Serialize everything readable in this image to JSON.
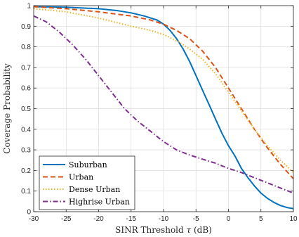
{
  "chart_data": {
    "type": "line",
    "title": "",
    "xlabel_text": "SINR Threshold ",
    "xlabel_symbol": "τ",
    "xlabel_unit": " (dB)",
    "ylabel": "Coverage Probability",
    "xlim": [
      -30,
      10
    ],
    "ylim": [
      0,
      1
    ],
    "xticks": [
      -30,
      -25,
      -20,
      -15,
      -10,
      -5,
      0,
      5,
      10
    ],
    "yticks": [
      0,
      0.1,
      0.2,
      0.3,
      0.4,
      0.5,
      0.6,
      0.7,
      0.8,
      0.9,
      1
    ],
    "grid": true,
    "legend_position": "bottom-left",
    "series": [
      {
        "name": "Suburban",
        "color": "#0072BD",
        "style": "solid",
        "x": [
          -30,
          -25,
          -20,
          -17,
          -15,
          -13,
          -11,
          -10,
          -9,
          -8,
          -7,
          -6,
          -5,
          -4,
          -3,
          -2,
          -1,
          0,
          1,
          2,
          3,
          4,
          5,
          6,
          7,
          8,
          9,
          10
        ],
        "y": [
          0.995,
          0.992,
          0.985,
          0.975,
          0.965,
          0.95,
          0.93,
          0.91,
          0.88,
          0.84,
          0.79,
          0.73,
          0.66,
          0.59,
          0.52,
          0.45,
          0.38,
          0.32,
          0.27,
          0.21,
          0.165,
          0.125,
          0.09,
          0.065,
          0.045,
          0.03,
          0.02,
          0.015
        ]
      },
      {
        "name": "Urban",
        "color": "#D95319",
        "style": "dashed",
        "x": [
          -30,
          -25,
          -20,
          -15,
          -12,
          -10,
          -8,
          -6,
          -4,
          -2,
          0,
          2,
          4,
          6,
          8,
          10
        ],
        "y": [
          0.995,
          0.985,
          0.97,
          0.95,
          0.93,
          0.91,
          0.88,
          0.84,
          0.78,
          0.7,
          0.6,
          0.5,
          0.4,
          0.31,
          0.23,
          0.16
        ]
      },
      {
        "name": "Dense Urban",
        "color": "#EDB120",
        "style": "dotted",
        "x": [
          -30,
          -25,
          -20,
          -15,
          -12,
          -10,
          -8,
          -6,
          -4,
          -2,
          0,
          2,
          4,
          6,
          8,
          10
        ],
        "y": [
          0.985,
          0.97,
          0.94,
          0.9,
          0.88,
          0.86,
          0.83,
          0.79,
          0.74,
          0.67,
          0.58,
          0.49,
          0.4,
          0.32,
          0.25,
          0.19
        ]
      },
      {
        "name": "Highrise Urban",
        "color": "#7E2F8E",
        "style": "dashdot",
        "x": [
          -30,
          -28,
          -26,
          -24,
          -22,
          -20,
          -18,
          -16,
          -14,
          -12,
          -10,
          -8,
          -6,
          -4,
          -2,
          0,
          2,
          4,
          6,
          8,
          10
        ],
        "y": [
          0.95,
          0.92,
          0.87,
          0.81,
          0.74,
          0.66,
          0.58,
          0.5,
          0.44,
          0.39,
          0.34,
          0.3,
          0.275,
          0.255,
          0.235,
          0.21,
          0.19,
          0.165,
          0.14,
          0.115,
          0.09
        ]
      }
    ]
  }
}
